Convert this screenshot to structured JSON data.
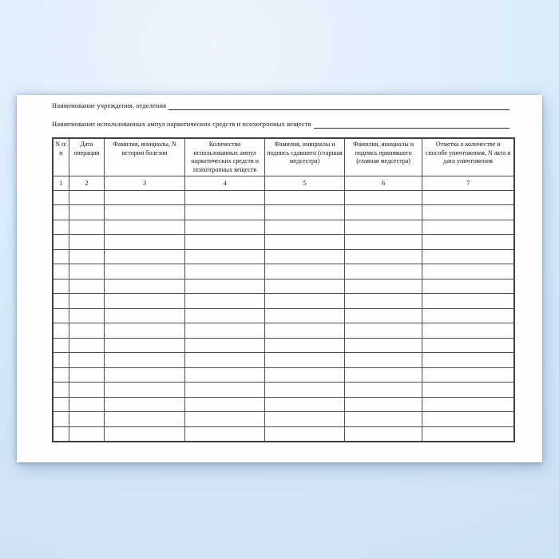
{
  "document": {
    "form_line_1_label": "Наименование учреждения, отделения",
    "form_line_2_label": "Наименование использованных ампул наркотических средств и психотропных веществ",
    "table": {
      "columns": [
        {
          "header": "N п/п",
          "number": "1"
        },
        {
          "header": "Дата операции",
          "number": "2"
        },
        {
          "header": "Фамилия, инициалы, N истории болезни",
          "number": "3"
        },
        {
          "header": "Количество использованных ампул наркотических средств и психотропных веществ",
          "number": "4"
        },
        {
          "header": "Фамилия, инициалы и подпись сдавшего (старшая медсестра)",
          "number": "5"
        },
        {
          "header": "Фамилия, инициалы и подпись принявшего (главная медсестра)",
          "number": "6"
        },
        {
          "header": "Отметка о количестве и способе уничтожения, N акта и дата уничтожения",
          "number": "7"
        }
      ],
      "empty_row_count": 17
    },
    "colors": {
      "paper": "#fdfdfe",
      "table_border": "#4e4e4e",
      "text": "#151515",
      "background": "#d6e9f9"
    }
  }
}
